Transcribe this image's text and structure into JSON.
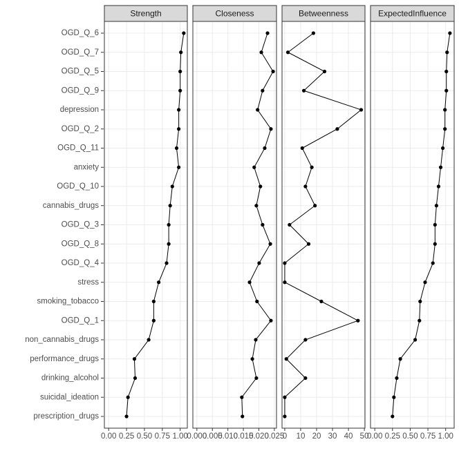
{
  "chart_data": {
    "type": "line",
    "color": "#000000",
    "grid": true,
    "categories": [
      "OGD_Q_6",
      "OGD_Q_7",
      "OGD_Q_5",
      "OGD_Q_9",
      "depression",
      "OGD_Q_2",
      "OGD_Q_11",
      "anxiety",
      "OGD_Q_10",
      "cannabis_drugs",
      "OGD_Q_3",
      "OGD_Q_8",
      "OGD_Q_4",
      "stress",
      "smoking_tobacco",
      "OGD_Q_1",
      "non_cannabis_drugs",
      "performance_drugs",
      "drinking_alcohol",
      "suicidal_ideation",
      "prescription_drugs"
    ],
    "panels": [
      {
        "title": "Strength",
        "xlim": [
          -0.06,
          1.1
        ],
        "xticks": [
          {
            "value": 0,
            "label": "0.00"
          },
          {
            "value": 0.25,
            "label": "0.25"
          },
          {
            "value": 0.5,
            "label": "0.50"
          },
          {
            "value": 0.75,
            "label": "0.75"
          },
          {
            "value": 1,
            "label": "1.00"
          }
        ],
        "values": [
          1.05,
          1.01,
          1.0,
          1.0,
          0.98,
          0.98,
          0.95,
          0.98,
          0.89,
          0.86,
          0.84,
          0.84,
          0.81,
          0.7,
          0.63,
          0.63,
          0.56,
          0.36,
          0.37,
          0.27,
          0.25
        ]
      },
      {
        "title": "Closeness",
        "xlim": [
          -0.0013,
          0.0257
        ],
        "xticks": [
          {
            "value": 0,
            "label": "0.000"
          },
          {
            "value": 0.005,
            "label": "0.005"
          },
          {
            "value": 0.01,
            "label": "0.010"
          },
          {
            "value": 0.015,
            "label": "0.015"
          },
          {
            "value": 0.02,
            "label": "0.020"
          },
          {
            "value": 0.025,
            "label": "0.025"
          }
        ],
        "values": [
          0.0228,
          0.0208,
          0.0246,
          0.0212,
          0.0196,
          0.0239,
          0.0219,
          0.0185,
          0.0205,
          0.0192,
          0.0212,
          0.0237,
          0.0201,
          0.017,
          0.0194,
          0.0239,
          0.019,
          0.0179,
          0.0192,
          0.0145,
          0.0147
        ]
      },
      {
        "title": "Betweenness",
        "xlim": [
          -1.7,
          50.4
        ],
        "xticks": [
          0,
          10,
          20,
          30,
          40,
          50
        ],
        "values": [
          18,
          2,
          25,
          12,
          48,
          33,
          11,
          17,
          13,
          19,
          3,
          15,
          0,
          0,
          23,
          46,
          13,
          1,
          13,
          0,
          0
        ]
      },
      {
        "title": "ExpectedInfluence",
        "xlim": [
          -0.06,
          1.12
        ],
        "xticks": [
          {
            "value": 0,
            "label": "0.00"
          },
          {
            "value": 0.25,
            "label": "0.25"
          },
          {
            "value": 0.5,
            "label": "0.50"
          },
          {
            "value": 0.75,
            "label": "0.75"
          },
          {
            "value": 1,
            "label": "1.00"
          }
        ],
        "values": [
          1.06,
          1.02,
          1.01,
          1.01,
          0.99,
          0.99,
          0.96,
          0.93,
          0.9,
          0.87,
          0.85,
          0.85,
          0.82,
          0.71,
          0.64,
          0.63,
          0.57,
          0.36,
          0.31,
          0.27,
          0.25
        ]
      }
    ]
  }
}
